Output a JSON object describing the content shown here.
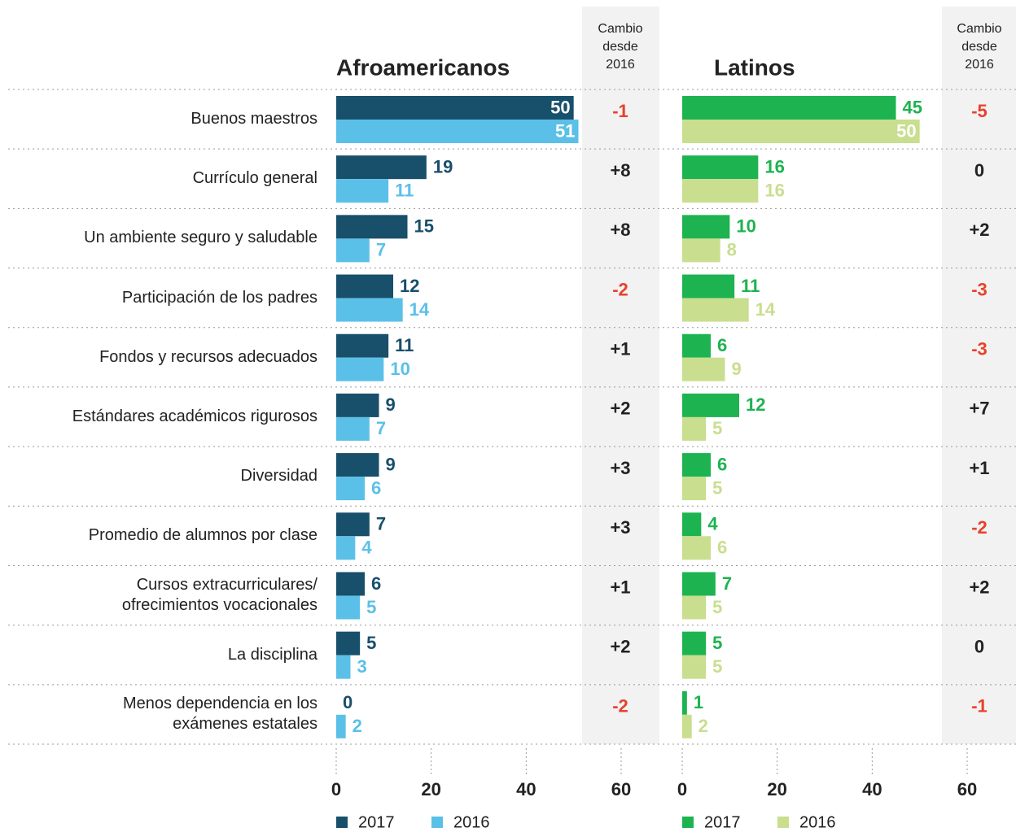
{
  "chart_data": [
    {
      "type": "bar",
      "orientation": "horizontal",
      "title": "Afroamericanos",
      "categories": [
        "Buenos maestros",
        "Currículo general",
        "Un ambiente seguro y saludable",
        "Participación de los padres",
        "Fondos y recursos adecuados",
        "Estándares académicos rigurosos",
        "Diversidad",
        "Promedio de alumnos por clase",
        "Cursos extracurriculares/\nofrecimientos vocacionales",
        "La disciplina",
        "Menos dependencia en los\nexámenes estatales"
      ],
      "series": [
        {
          "name": "2017",
          "color": "#184f6b",
          "values": [
            50,
            19,
            15,
            12,
            11,
            9,
            9,
            7,
            6,
            5,
            0
          ]
        },
        {
          "name": "2016",
          "color": "#5bc0e8",
          "values": [
            51,
            11,
            7,
            14,
            10,
            7,
            6,
            4,
            5,
            3,
            2
          ]
        }
      ],
      "change_header": "Cambio desde 2016",
      "changes": {
        "values": [
          -1,
          8,
          8,
          -2,
          1,
          2,
          3,
          3,
          1,
          2,
          -2
        ],
        "value_labels": [
          "-1",
          "+8",
          "+8",
          "-2",
          "+1",
          "+2",
          "+3",
          "+3",
          "+1",
          "+2",
          "-2"
        ]
      },
      "change_colors": {
        "negative": "#e8412b",
        "other": "#222222"
      },
      "xlim": [
        0,
        60
      ],
      "xticks": [
        0,
        20,
        40,
        60
      ],
      "grid": true
    },
    {
      "type": "bar",
      "orientation": "horizontal",
      "title": "Latinos",
      "series": [
        {
          "name": "2017",
          "color": "#1db350",
          "values": [
            45,
            16,
            10,
            11,
            6,
            12,
            6,
            4,
            7,
            5,
            1
          ]
        },
        {
          "name": "2016",
          "color": "#c9de8f",
          "values": [
            50,
            16,
            8,
            14,
            9,
            5,
            5,
            6,
            5,
            5,
            2
          ]
        }
      ],
      "change_header": "Cambio desde 2016",
      "changes": {
        "values": [
          -5,
          0,
          2,
          -3,
          -3,
          7,
          1,
          -2,
          2,
          0,
          -1
        ],
        "value_labels": [
          "-5",
          "0",
          "+2",
          "-3",
          "-3",
          "+7",
          "+1",
          "-2",
          "+2",
          "0",
          "-1"
        ]
      },
      "change_colors": {
        "negative": "#e8412b",
        "other": "#222222"
      },
      "xlim": [
        0,
        60
      ],
      "xticks": [
        0,
        20,
        40,
        60
      ],
      "grid": true
    }
  ]
}
